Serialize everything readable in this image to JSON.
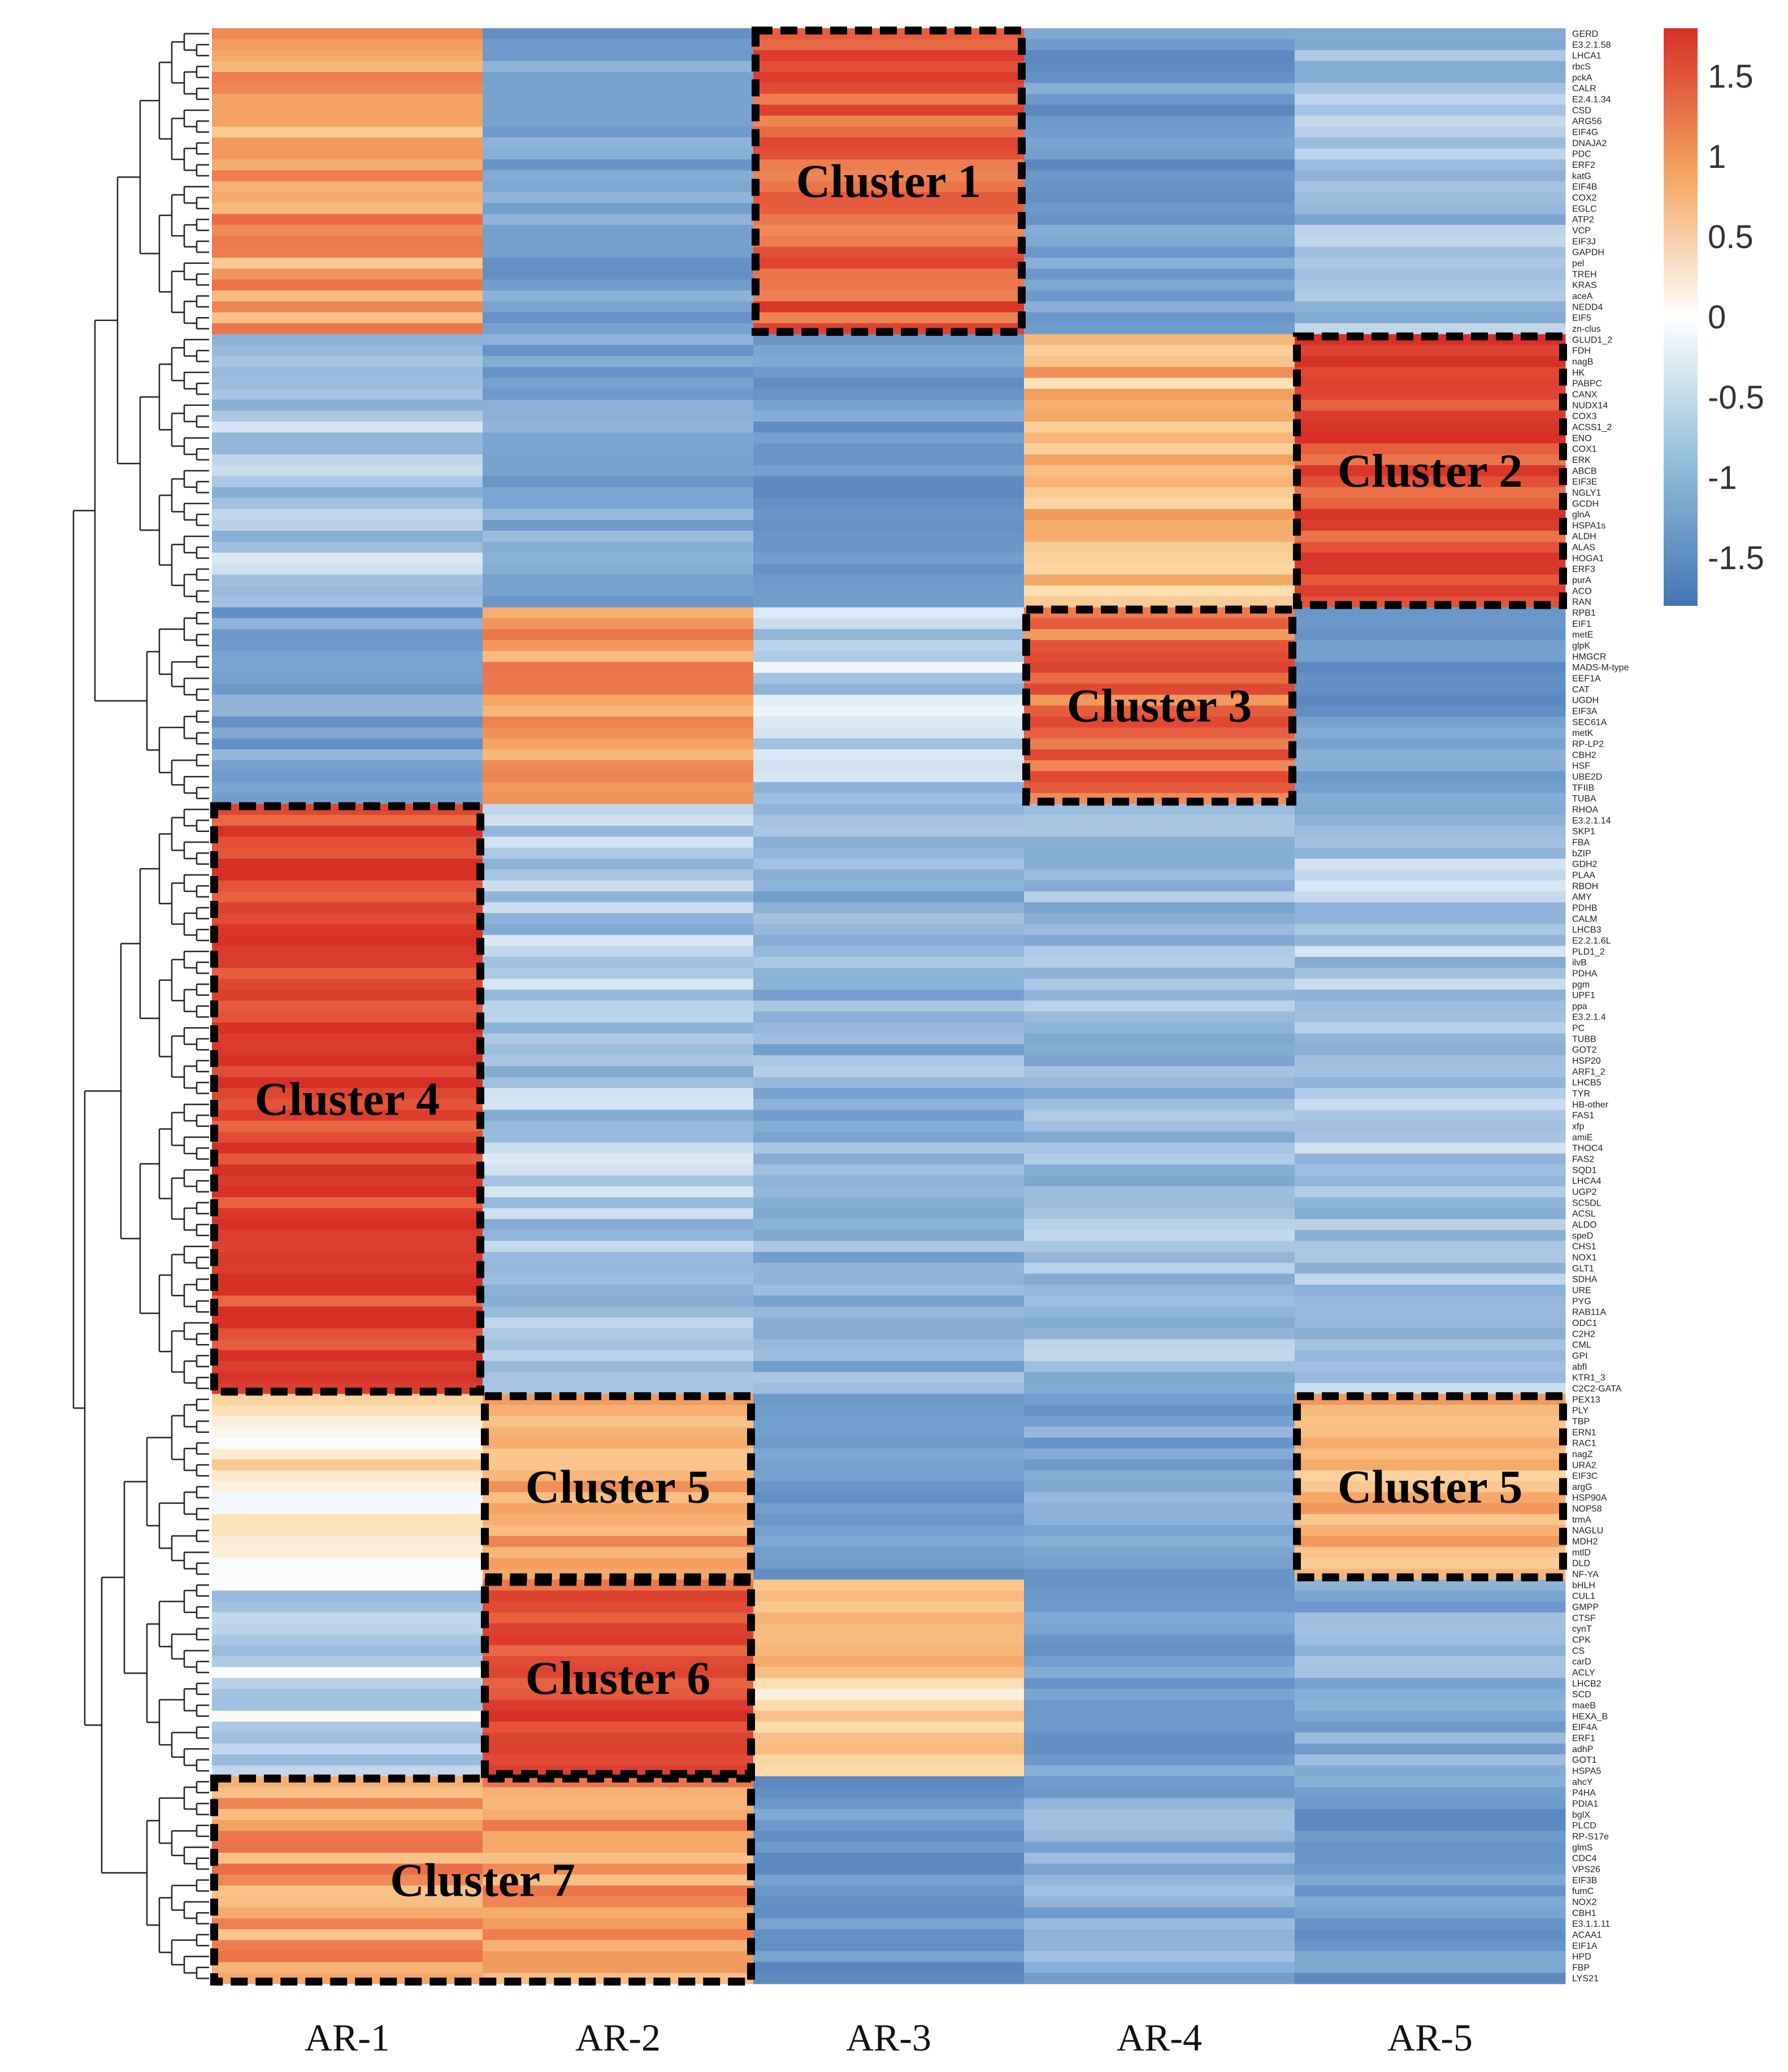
{
  "chart_data": {
    "type": "heatmap",
    "columns": [
      "AR-1",
      "AR-2",
      "AR-3",
      "AR-4",
      "AR-5"
    ],
    "rows": [
      "GERD",
      "E3.2.1.58",
      "LHCA1",
      "rbcS",
      "pckA",
      "CALR",
      "E2.4.1.34",
      "CSD",
      "ARG56",
      "EIF4G",
      "DNAJA2",
      "PDC",
      "ERF2",
      "katG",
      "EIF4B",
      "COX2",
      "EGLC",
      "ATP2",
      "VCP",
      "EIF3J",
      "GAPDH",
      "pel",
      "TREH",
      "KRAS",
      "aceA",
      "NEDD4",
      "EIF5",
      "zn-clus",
      "GLUD1_2",
      "FDH",
      "nagB",
      "HK",
      "PABPC",
      "CANX",
      "NUDX14",
      "COX3",
      "ACSS1_2",
      "ENO",
      "COX1",
      "ERK",
      "ABCB",
      "EIF3E",
      "NGLY1",
      "GCDH",
      "glnA",
      "HSPA1s",
      "ALDH",
      "ALAS",
      "HOGA1",
      "ERF3",
      "purA",
      "ACO",
      "RAN",
      "RPB1",
      "EIF1",
      "metE",
      "glpK",
      "HMGCR",
      "MADS-M-type",
      "EEF1A",
      "CAT",
      "UGDH",
      "EIF3A",
      "SEC61A",
      "metK",
      "RP-LP2",
      "CBH2",
      "HSF",
      "UBE2D",
      "TFIIB",
      "TUBA",
      "RHOA",
      "E3.2.1.14",
      "SKP1",
      "FBA",
      "bZIP",
      "GDH2",
      "PLAA",
      "RBOH",
      "AMY",
      "PDHB",
      "CALM",
      "LHCB3",
      "E2.2.1.6L",
      "PLD1_2",
      "ilvB",
      "PDHA",
      "pgm",
      "UPF1",
      "ppa",
      "E3.2.1.4",
      "PC",
      "TUBB",
      "GOT2",
      "HSP20",
      "ARF1_2",
      "LHCB5",
      "TYR",
      "HB-other",
      "FAS1",
      "xfp",
      "amiE",
      "THOC4",
      "FAS2",
      "SQD1",
      "LHCA4",
      "UGP2",
      "SC5DL",
      "ACSL",
      "ALDO",
      "speD",
      "CHS1",
      "NOX1",
      "GLT1",
      "SDHA",
      "URE",
      "PYG",
      "RAB11A",
      "ODC1",
      "C2H2",
      "CML",
      "GPI",
      "abfI",
      "KTR1_3",
      "C2C2-GATA",
      "PEX13",
      "PLY",
      "TBP",
      "ERN1",
      "RAC1",
      "nagZ",
      "URA2",
      "EIF3C",
      "argG",
      "HSP90A",
      "NOP58",
      "trmA",
      "NAGLU",
      "MDH2",
      "mtlD",
      "DLD",
      "NF-YA",
      "bHLH",
      "CUL1",
      "GMPP",
      "CTSF",
      "cynT",
      "CPK",
      "CS",
      "carD",
      "ACLY",
      "LHCB2",
      "SCD",
      "maeB",
      "HEXA_B",
      "EIF4A",
      "ERF1",
      "adhP",
      "GOT1",
      "HSPA5",
      "ahcY",
      "P4HA",
      "PDIA1",
      "bglX",
      "PLCD",
      "RP-S17e",
      "glmS",
      "CDC4",
      "VPS26",
      "EIF3B",
      "fumC",
      "NOX2",
      "CBH1",
      "E3.1.1.11",
      "ACAA1",
      "EIF1A",
      "HPD",
      "FBP",
      "LYS21"
    ],
    "row_blocks": [
      {
        "start": 0,
        "end": 27,
        "values": [
          0.9,
          -1.0,
          1.4,
          -1.1,
          -0.6
        ],
        "label": "Cluster 1",
        "label_column": 2
      },
      {
        "start": 28,
        "end": 52,
        "values": [
          -0.5,
          -0.9,
          -1.1,
          0.7,
          1.5
        ],
        "label": "Cluster 2",
        "label_column": 4
      },
      {
        "start": 53,
        "end": 70,
        "values": [
          -1.0,
          0.9,
          -0.4,
          1.3,
          -1.1
        ],
        "label": "Cluster 3",
        "label_column": 3
      },
      {
        "start": 71,
        "end": 124,
        "values": [
          1.6,
          -0.5,
          -0.7,
          -0.6,
          -0.5
        ],
        "label": "Cluster 4",
        "label_column": 0
      },
      {
        "start": 125,
        "end": 141,
        "values": [
          0.3,
          0.9,
          -1.2,
          -0.9,
          0.8
        ],
        "label": "Cluster 5",
        "label_columns": [
          1,
          4
        ]
      },
      {
        "start": 142,
        "end": 159,
        "values": [
          -0.3,
          1.5,
          0.5,
          -1.1,
          -0.8
        ],
        "label": "Cluster 6",
        "label_column": 1
      },
      {
        "start": 160,
        "end": 178,
        "values": [
          0.9,
          0.9,
          -1.2,
          -0.8,
          -1.1
        ],
        "label": "Cluster 7",
        "label_columns": [
          0,
          1
        ]
      }
    ],
    "cluster_labels": [
      "Cluster 1",
      "Cluster 2",
      "Cluster 3",
      "Cluster 4",
      "Cluster 5",
      "Cluster 5",
      "Cluster 6",
      "Cluster 7"
    ],
    "legend": {
      "ticks": [
        "1.5",
        "1",
        "0.5",
        "0",
        "-0.5",
        "-1",
        "-1.5"
      ],
      "range": [
        -1.8,
        1.8
      ],
      "colors": {
        "low": "#4575b4",
        "mid": "#ffffff",
        "high": "#d73027"
      }
    },
    "title": "",
    "xlabel": "",
    "ylabel": ""
  }
}
